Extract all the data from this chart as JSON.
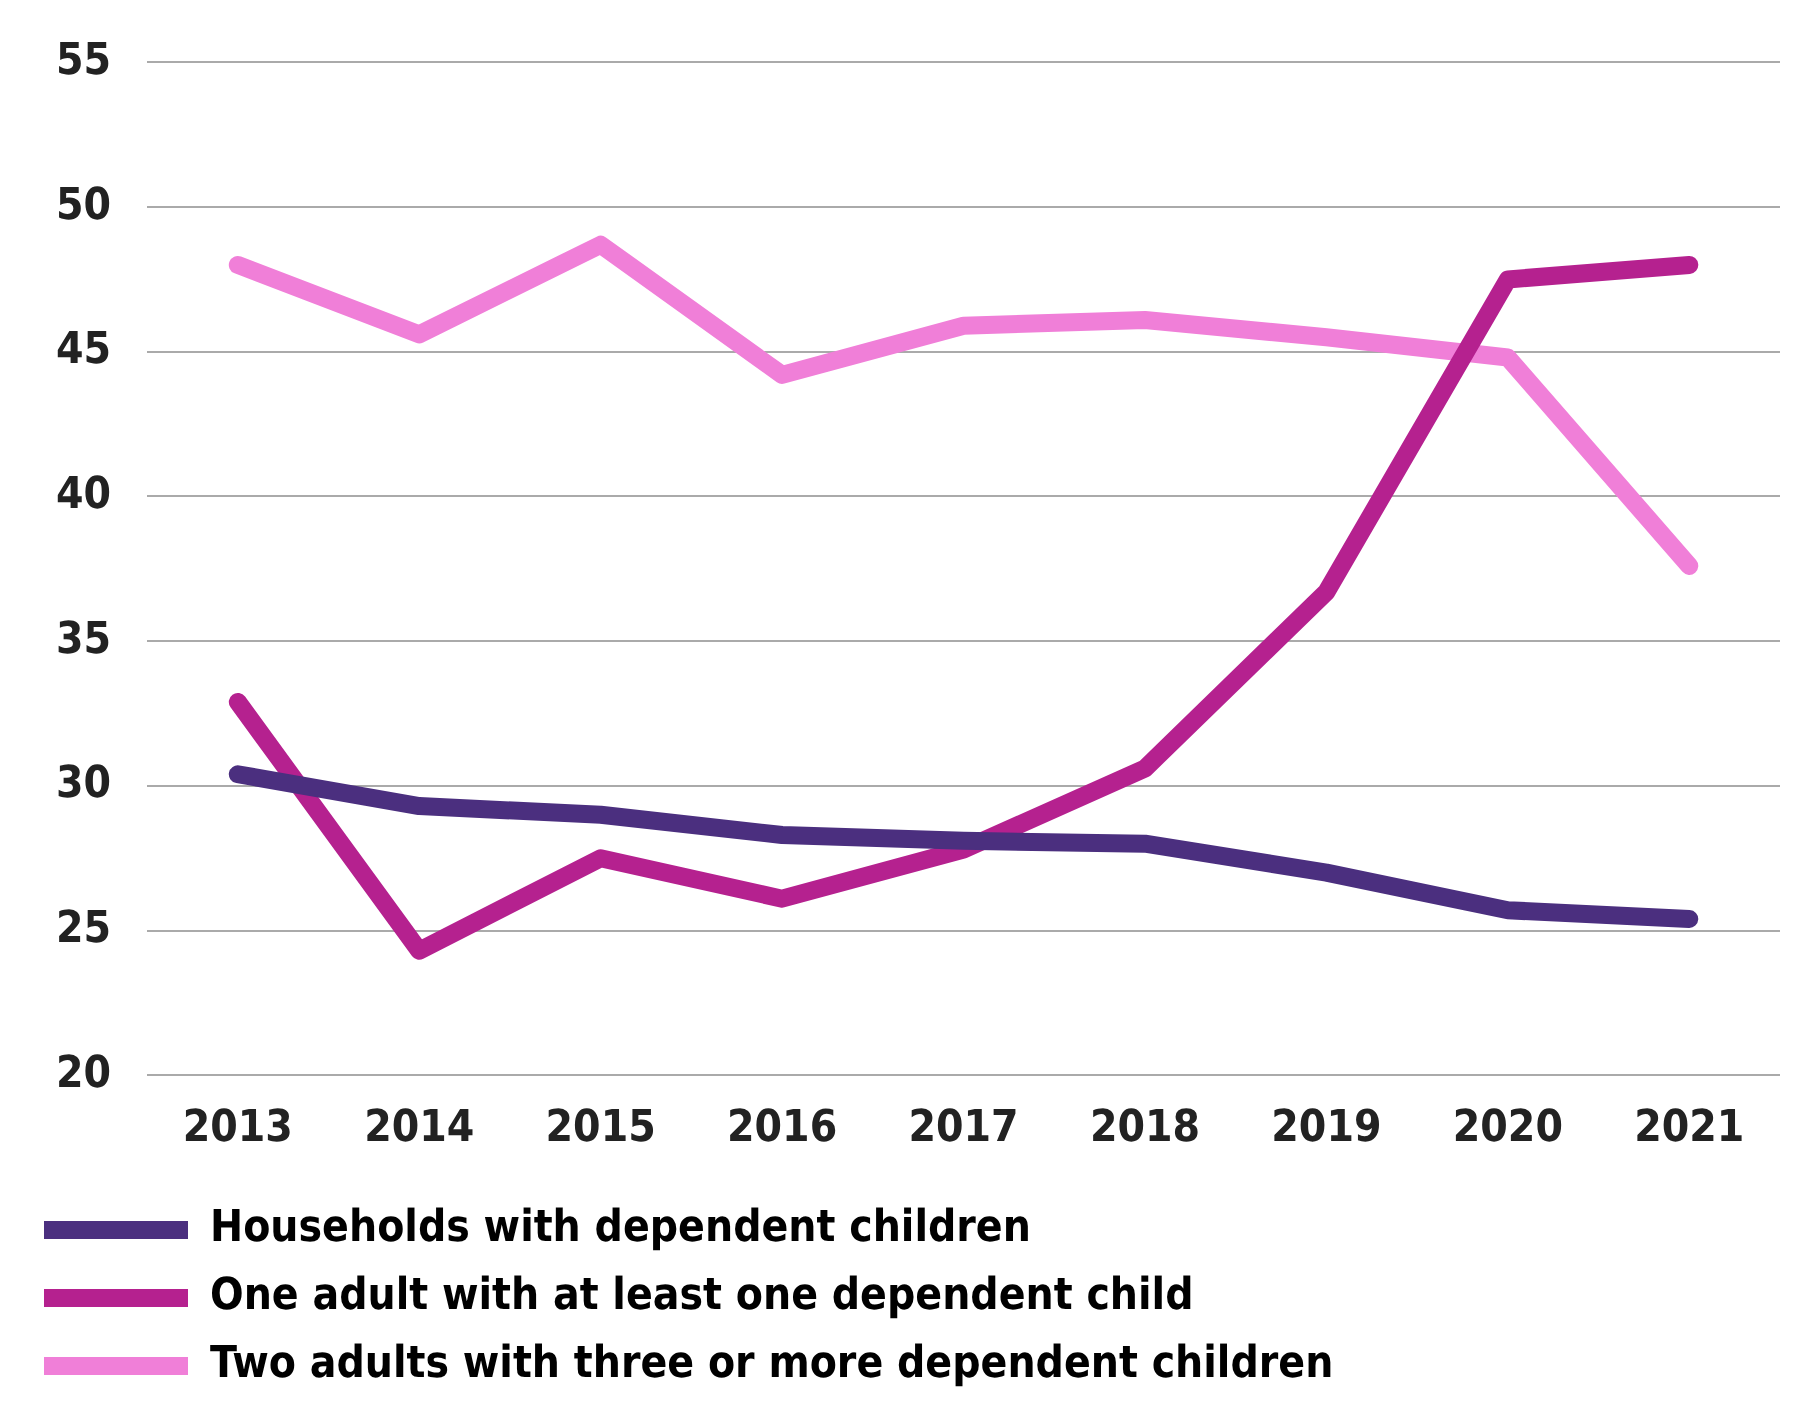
{
  "chart_data": {
    "type": "line",
    "categories": [
      "2013",
      "2014",
      "2015",
      "2016",
      "2017",
      "2018",
      "2019",
      "2020",
      "2021"
    ],
    "series": [
      {
        "name": "Households with dependent children",
        "color": "#4b2f7f",
        "values": [
          30.4,
          29.3,
          29.0,
          28.3,
          28.1,
          28.0,
          27.0,
          25.7,
          25.4
        ]
      },
      {
        "name": "One adult with at least one dependent child",
        "color": "#b5218f",
        "values": [
          32.9,
          24.3,
          27.5,
          26.1,
          27.8,
          30.6,
          36.7,
          47.5,
          48.0
        ]
      },
      {
        "name": "Two adults with three or more dependent children",
        "color": "#f07fd8",
        "values": [
          48.0,
          45.6,
          48.7,
          44.2,
          45.9,
          46.1,
          45.5,
          44.8,
          37.6
        ]
      }
    ],
    "ylim": [
      20,
      55
    ],
    "yticks": [
      20,
      25,
      30,
      35,
      40,
      45,
      50,
      55
    ],
    "grid": "y",
    "legend": "bottom",
    "marker": "none",
    "line_style": "solid"
  }
}
